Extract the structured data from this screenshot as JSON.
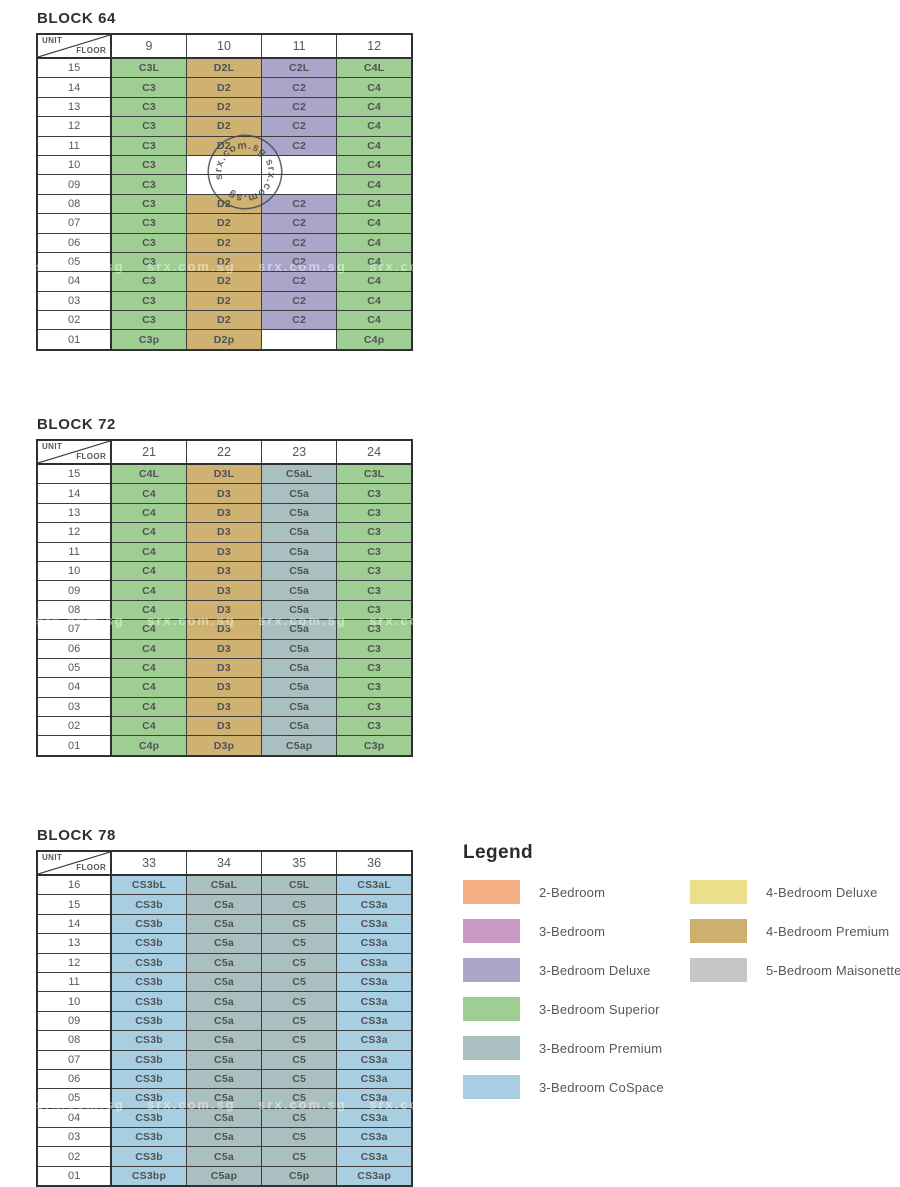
{
  "table_header": {
    "unit_label": "UNIT",
    "floor_label": "FLOOR"
  },
  "cell_colors": {
    "g": "#9fce93",
    "t": "#cfb172",
    "v": "#a9a6ca",
    "s": "#aabfbf",
    "b": "#a8cee1",
    "w": "#ffffff"
  },
  "blocks": [
    {
      "title": "BLOCK 64",
      "units": [
        "9",
        "10",
        "11",
        "12"
      ],
      "rows": [
        [
          "15",
          "C3L|g",
          "D2L|t",
          "C2L|v",
          "C4L|g"
        ],
        [
          "14",
          "C3|g",
          "D2|t",
          "C2|v",
          "C4|g"
        ],
        [
          "13",
          "C3|g",
          "D2|t",
          "C2|v",
          "C4|g"
        ],
        [
          "12",
          "C3|g",
          "D2|t",
          "C2|v",
          "C4|g"
        ],
        [
          "11",
          "C3|g",
          "D2|t",
          "C2|v",
          "C4|g"
        ],
        [
          "10",
          "C3|g",
          "|w",
          "|w",
          "C4|g"
        ],
        [
          "09",
          "C3|g",
          "|w",
          "|w",
          "C4|g"
        ],
        [
          "08",
          "C3|g",
          "D2|t",
          "C2|v",
          "C4|g"
        ],
        [
          "07",
          "C3|g",
          "D2|t",
          "C2|v",
          "C4|g"
        ],
        [
          "06",
          "C3|g",
          "D2|t",
          "C2|v",
          "C4|g"
        ],
        [
          "05",
          "C3|g",
          "D2|t",
          "C2|v",
          "C4|g"
        ],
        [
          "04",
          "C3|g",
          "D2|t",
          "C2|v",
          "C4|g"
        ],
        [
          "03",
          "C3|g",
          "D2|t",
          "C2|v",
          "C4|g"
        ],
        [
          "02",
          "C3|g",
          "D2|t",
          "C2|v",
          "C4|g"
        ],
        [
          "01",
          "C3p|g",
          "D2p|t",
          "|w",
          "C4p|g"
        ]
      ]
    },
    {
      "title": "BLOCK 72",
      "units": [
        "21",
        "22",
        "23",
        "24"
      ],
      "rows": [
        [
          "15",
          "C4L|g",
          "D3L|t",
          "C5aL|s",
          "C3L|g"
        ],
        [
          "14",
          "C4|g",
          "D3|t",
          "C5a|s",
          "C3|g"
        ],
        [
          "13",
          "C4|g",
          "D3|t",
          "C5a|s",
          "C3|g"
        ],
        [
          "12",
          "C4|g",
          "D3|t",
          "C5a|s",
          "C3|g"
        ],
        [
          "11",
          "C4|g",
          "D3|t",
          "C5a|s",
          "C3|g"
        ],
        [
          "10",
          "C4|g",
          "D3|t",
          "C5a|s",
          "C3|g"
        ],
        [
          "09",
          "C4|g",
          "D3|t",
          "C5a|s",
          "C3|g"
        ],
        [
          "08",
          "C4|g",
          "D3|t",
          "C5a|s",
          "C3|g"
        ],
        [
          "07",
          "C4|g",
          "D3|t",
          "C5a|s",
          "C3|g"
        ],
        [
          "06",
          "C4|g",
          "D3|t",
          "C5a|s",
          "C3|g"
        ],
        [
          "05",
          "C4|g",
          "D3|t",
          "C5a|s",
          "C3|g"
        ],
        [
          "04",
          "C4|g",
          "D3|t",
          "C5a|s",
          "C3|g"
        ],
        [
          "03",
          "C4|g",
          "D3|t",
          "C5a|s",
          "C3|g"
        ],
        [
          "02",
          "C4|g",
          "D3|t",
          "C5a|s",
          "C3|g"
        ],
        [
          "01",
          "C4p|g",
          "D3p|t",
          "C5ap|s",
          "C3p|g"
        ]
      ]
    },
    {
      "title": "BLOCK 78",
      "units": [
        "33",
        "34",
        "35",
        "36"
      ],
      "rows": [
        [
          "16",
          "CS3bL|b",
          "C5aL|s",
          "C5L|s",
          "CS3aL|b"
        ],
        [
          "15",
          "CS3b|b",
          "C5a|s",
          "C5|s",
          "CS3a|b"
        ],
        [
          "14",
          "CS3b|b",
          "C5a|s",
          "C5|s",
          "CS3a|b"
        ],
        [
          "13",
          "CS3b|b",
          "C5a|s",
          "C5|s",
          "CS3a|b"
        ],
        [
          "12",
          "CS3b|b",
          "C5a|s",
          "C5|s",
          "CS3a|b"
        ],
        [
          "11",
          "CS3b|b",
          "C5a|s",
          "C5|s",
          "CS3a|b"
        ],
        [
          "10",
          "CS3b|b",
          "C5a|s",
          "C5|s",
          "CS3a|b"
        ],
        [
          "09",
          "CS3b|b",
          "C5a|s",
          "C5|s",
          "CS3a|b"
        ],
        [
          "08",
          "CS3b|b",
          "C5a|s",
          "C5|s",
          "CS3a|b"
        ],
        [
          "07",
          "CS3b|b",
          "C5a|s",
          "C5|s",
          "CS3a|b"
        ],
        [
          "06",
          "CS3b|b",
          "C5a|s",
          "C5|s",
          "CS3a|b"
        ],
        [
          "05",
          "CS3b|b",
          "C5a|s",
          "C5|s",
          "CS3a|b"
        ],
        [
          "04",
          "CS3b|b",
          "C5a|s",
          "C5|s",
          "CS3a|b"
        ],
        [
          "03",
          "CS3b|b",
          "C5a|s",
          "C5|s",
          "CS3a|b"
        ],
        [
          "02",
          "CS3b|b",
          "C5a|s",
          "C5|s",
          "CS3a|b"
        ],
        [
          "01",
          "CS3bp|b",
          "C5ap|s",
          "C5p|s",
          "CS3ap|b"
        ]
      ]
    }
  ],
  "legend": {
    "title": "Legend",
    "column_break": 6,
    "items": [
      {
        "label": "2-Bedroom",
        "color": "#f4ae82"
      },
      {
        "label": "3-Bedroom",
        "color": "#cb97c4"
      },
      {
        "label": "3-Bedroom Deluxe",
        "color": "#a9a6ca"
      },
      {
        "label": "3-Bedroom Superior",
        "color": "#9fce93"
      },
      {
        "label": "3-Bedroom Premium",
        "color": "#aabfbf"
      },
      {
        "label": "3-Bedroom CoSpace",
        "color": "#a8cee1"
      },
      {
        "label": "4-Bedroom Deluxe",
        "color": "#ecdf8c"
      },
      {
        "label": "4-Bedroom Premium",
        "color": "#cdb06e"
      },
      {
        "label": "5-Bedroom Maisonette",
        "color": "#c6c6c8"
      }
    ]
  },
  "watermark": {
    "text": "srx.com.sg",
    "ring_text": "srx.com.sg   srx.com.sg   "
  }
}
